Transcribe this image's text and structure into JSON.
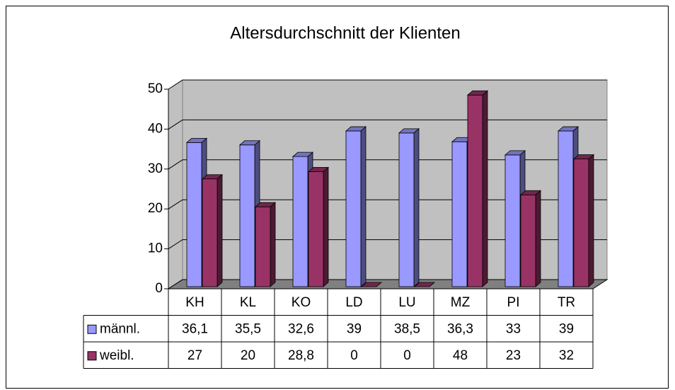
{
  "chart_data": {
    "type": "bar3d",
    "title": "Altersdurchschnitt der Klienten",
    "categories": [
      "KH",
      "KL",
      "KO",
      "LD",
      "LU",
      "MZ",
      "PI",
      "TR"
    ],
    "series": [
      {
        "name": "männl.",
        "color": "#9999ff",
        "values": [
          36.1,
          35.5,
          32.6,
          39,
          38.5,
          36.3,
          33,
          39
        ],
        "value_labels": [
          "36,1",
          "35,5",
          "32,6",
          "39",
          "38,5",
          "36,3",
          "33",
          "39"
        ]
      },
      {
        "name": "weibl.",
        "color": "#993366",
        "values": [
          27,
          20,
          28.8,
          0,
          0,
          48,
          23,
          32
        ],
        "value_labels": [
          "27",
          "20",
          "28,8",
          "0",
          "0",
          "48",
          "23",
          "32"
        ]
      }
    ],
    "ylim": [
      0,
      50
    ],
    "yticks": [
      0,
      10,
      20,
      30,
      40,
      50
    ],
    "grid": true,
    "data_table": true
  }
}
